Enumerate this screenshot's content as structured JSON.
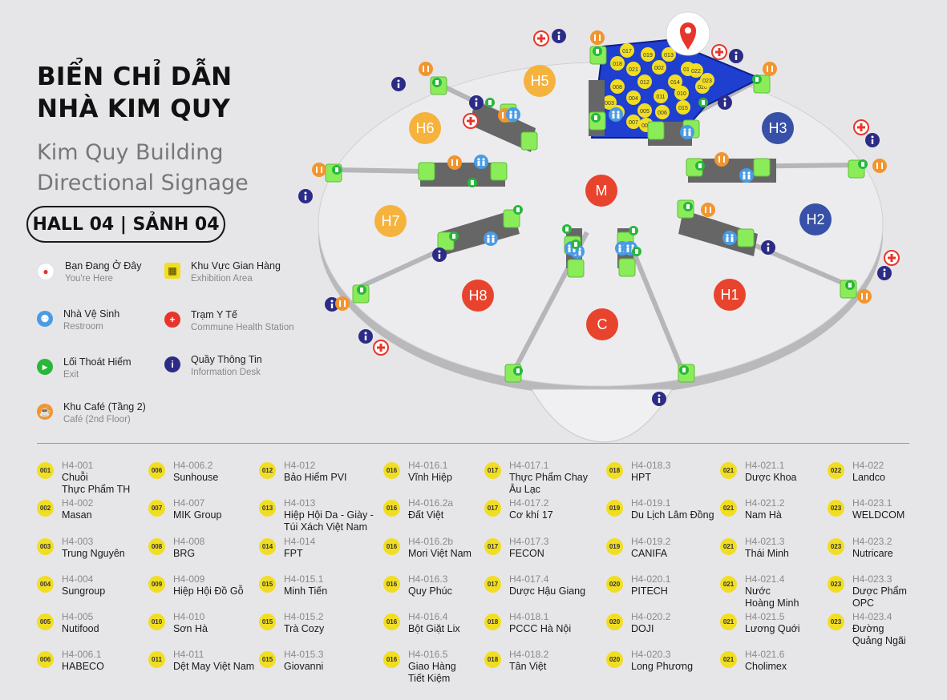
{
  "title": {
    "vi_line1": "BIỂN CHỈ DẪN",
    "vi_line2": "NHÀ KIM QUY",
    "en_line1": "Kim Quy Building",
    "en_line2": "Directional Signage"
  },
  "hall_label": "HALL 04 | SẢNH 04",
  "legend": [
    {
      "icon": "location-pin-icon",
      "color": "#e8352b",
      "vi": "Bạn Đang Ở Đây",
      "en": "You're Here"
    },
    {
      "icon": "restroom-icon",
      "color": "#4a9be4",
      "vi": "Nhà Vệ Sinh",
      "en": "Restroom"
    },
    {
      "icon": "exit-icon",
      "color": "#27b83a",
      "vi": "Lối Thoát Hiểm",
      "en": "Exit"
    },
    {
      "icon": "cafe-icon",
      "color": "#f2952e",
      "vi": "Khu Café (Tầng 2)",
      "en": "Café (2nd Floor)"
    },
    {
      "icon": "exhibition-area-icon",
      "color": "#f1de23",
      "vi": "Khu Vực Gian Hàng",
      "en": "Exhibition Area"
    },
    {
      "icon": "medical-cross-icon",
      "color": "#e8352b",
      "vi": "Trạm Y Tế",
      "en": "Commune Health Station"
    },
    {
      "icon": "info-icon",
      "color": "#2c2c86",
      "vi": "Quầy Thông Tin",
      "en": "Information Desk"
    }
  ],
  "zones": [
    {
      "label": "H1",
      "color": "#e8432d"
    },
    {
      "label": "H2",
      "color": "#3750a8"
    },
    {
      "label": "H3",
      "color": "#3750a8"
    },
    {
      "label": "H5",
      "color": "#f5b23d"
    },
    {
      "label": "H6",
      "color": "#f5b23d"
    },
    {
      "label": "H7",
      "color": "#f5b23d"
    },
    {
      "label": "H8",
      "color": "#e8432d"
    },
    {
      "label": "M",
      "color": "#e8432d"
    },
    {
      "label": "C",
      "color": "#e8432d"
    }
  ],
  "map_booths": [
    "017",
    "018",
    "021",
    "019",
    "013",
    "012",
    "002",
    "014",
    "016",
    "020",
    "011",
    "010",
    "008",
    "004",
    "009",
    "005",
    "006",
    "007",
    "022",
    "023",
    "003",
    "001",
    "015"
  ],
  "booths": [
    {
      "badge": "001",
      "code": "H4-001",
      "name": [
        "Chuỗi",
        "Thực Phẩm TH"
      ]
    },
    {
      "badge": "002",
      "code": "H4-002",
      "name": [
        "Masan"
      ]
    },
    {
      "badge": "003",
      "code": "H4-003",
      "name": [
        "Trung Nguyên"
      ]
    },
    {
      "badge": "004",
      "code": "H4-004",
      "name": [
        "Sungroup"
      ]
    },
    {
      "badge": "005",
      "code": "H4-005",
      "name": [
        "Nutifood"
      ]
    },
    {
      "badge": "006",
      "code": "H4-006.1",
      "name": [
        "HABECO"
      ]
    },
    {
      "badge": "006",
      "code": "H4-006.2",
      "name": [
        "Sunhouse"
      ]
    },
    {
      "badge": "007",
      "code": "H4-007",
      "name": [
        "MIK Group"
      ]
    },
    {
      "badge": "008",
      "code": "H4-008",
      "name": [
        "BRG"
      ]
    },
    {
      "badge": "009",
      "code": "H4-009",
      "name": [
        "Hiệp Hội Đồ Gỗ"
      ]
    },
    {
      "badge": "010",
      "code": "H4-010",
      "name": [
        "Sơn Hà"
      ]
    },
    {
      "badge": "011",
      "code": "H4-011",
      "name": [
        "Dệt May Việt Nam"
      ]
    },
    {
      "badge": "012",
      "code": "H4-012",
      "name": [
        "Bảo Hiểm PVI"
      ]
    },
    {
      "badge": "013",
      "code": "H4-013",
      "name": [
        "Hiệp Hội Da - Giày -",
        "Túi Xách Việt Nam"
      ]
    },
    {
      "badge": "014",
      "code": "H4-014",
      "name": [
        "FPT"
      ]
    },
    {
      "badge": "015",
      "code": "H4-015.1",
      "name": [
        "Minh Tiến"
      ]
    },
    {
      "badge": "015",
      "code": "H4-015.2",
      "name": [
        "Trà Cozy"
      ]
    },
    {
      "badge": "015",
      "code": "H4-015.3",
      "name": [
        "Giovanni"
      ]
    },
    {
      "badge": "016",
      "code": "H4-016.1",
      "name": [
        "Vĩnh Hiệp"
      ]
    },
    {
      "badge": "016",
      "code": "H4-016.2a",
      "name": [
        "Đất Việt"
      ]
    },
    {
      "badge": "016",
      "code": "H4-016.2b",
      "name": [
        "Mori Việt Nam"
      ]
    },
    {
      "badge": "016",
      "code": "H4-016.3",
      "name": [
        "Quy Phúc"
      ]
    },
    {
      "badge": "016",
      "code": "H4-016.4",
      "name": [
        "Bột Giặt Lix"
      ]
    },
    {
      "badge": "016",
      "code": "H4-016.5",
      "name": [
        "Giao Hàng",
        "Tiết Kiệm"
      ]
    },
    {
      "badge": "017",
      "code": "H4-017.1",
      "name": [
        "Thực Phẩm Chay",
        "Âu Lạc"
      ]
    },
    {
      "badge": "017",
      "code": "H4-017.2",
      "name": [
        "Cơ khí 17"
      ]
    },
    {
      "badge": "017",
      "code": "H4-017.3",
      "name": [
        "FECON"
      ]
    },
    {
      "badge": "017",
      "code": "H4-017.4",
      "name": [
        "Dược Hậu Giang"
      ]
    },
    {
      "badge": "018",
      "code": "H4-018.1",
      "name": [
        "PCCC Hà Nội"
      ]
    },
    {
      "badge": "018",
      "code": "H4-018.2",
      "name": [
        "Tân Việt"
      ]
    },
    {
      "badge": "018",
      "code": "H4-018.3",
      "name": [
        "HPT"
      ]
    },
    {
      "badge": "019",
      "code": "H4-019.1",
      "name": [
        "Du Lịch Lâm Đồng"
      ]
    },
    {
      "badge": "019",
      "code": "H4-019.2",
      "name": [
        "CANIFA"
      ]
    },
    {
      "badge": "020",
      "code": "H4-020.1",
      "name": [
        "PITECH"
      ]
    },
    {
      "badge": "020",
      "code": "H4-020.2",
      "name": [
        "DOJI"
      ]
    },
    {
      "badge": "020",
      "code": "H4-020.3",
      "name": [
        "Long Phương"
      ]
    },
    {
      "badge": "021",
      "code": "H4-021.1",
      "name": [
        "Dược Khoa"
      ]
    },
    {
      "badge": "021",
      "code": "H4-021.2",
      "name": [
        "Nam Hà"
      ]
    },
    {
      "badge": "021",
      "code": "H4-021.3",
      "name": [
        "Thái Minh"
      ]
    },
    {
      "badge": "021",
      "code": "H4-021.4",
      "name": [
        "Nước",
        "Hoàng Minh"
      ]
    },
    {
      "badge": "021",
      "code": "H4-021.5",
      "name": [
        "Lương Quới"
      ]
    },
    {
      "badge": "021",
      "code": "H4-021.6",
      "name": [
        "Cholimex"
      ]
    },
    {
      "badge": "022",
      "code": "H4-022",
      "name": [
        "Landco"
      ]
    },
    {
      "badge": "023",
      "code": "H4-023.1",
      "name": [
        "WELDCOM"
      ]
    },
    {
      "badge": "023",
      "code": "H4-023.2",
      "name": [
        "Nutricare"
      ]
    },
    {
      "badge": "023",
      "code": "H4-023.3",
      "name": [
        "Dược Phẩm",
        "OPC"
      ]
    },
    {
      "badge": "023",
      "code": "H4-023.4",
      "name": [
        "Đường",
        "Quảng Ngãi"
      ]
    }
  ]
}
